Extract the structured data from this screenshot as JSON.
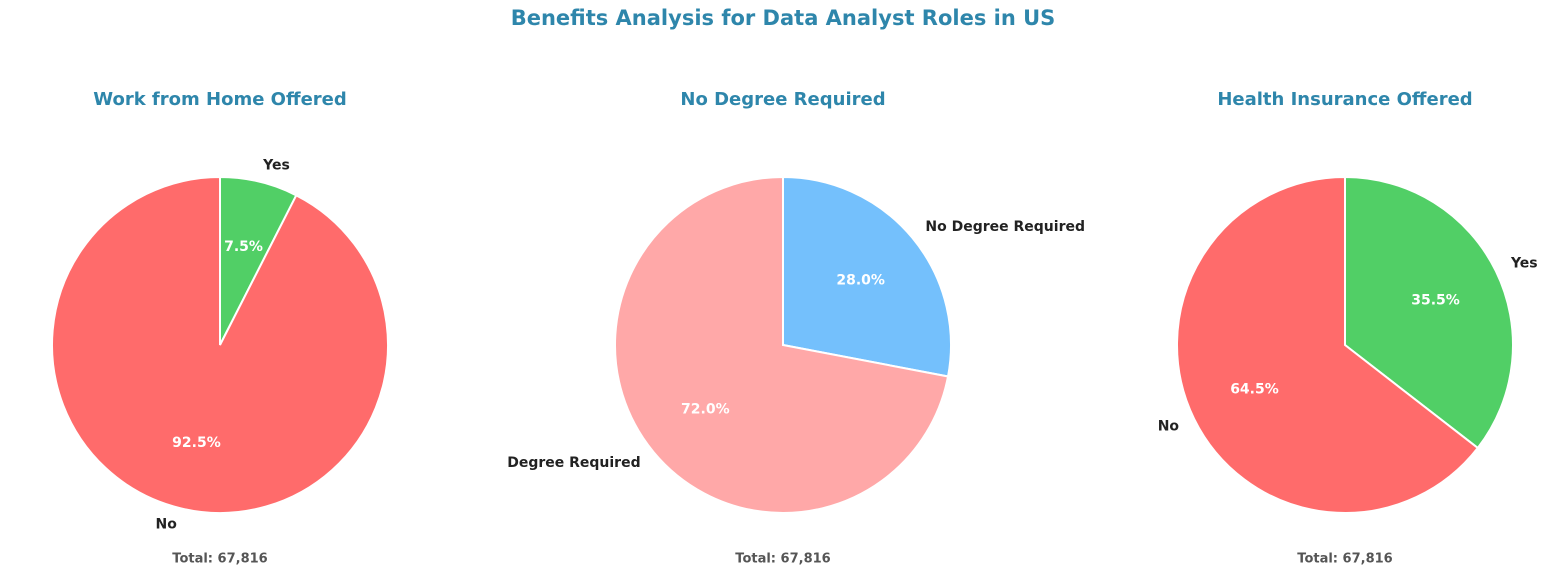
{
  "title": "Benefits Analysis for Data Analyst Roles in US",
  "chart_data": [
    {
      "type": "pie",
      "title": "Work from Home Offered",
      "categories": [
        "Yes",
        "No"
      ],
      "values": [
        7.5,
        92.5
      ],
      "value_labels": [
        "7.5%",
        "92.5%"
      ],
      "colors": [
        "#51cf66",
        "#ff6b6b"
      ],
      "total_label": "Total: 67,816"
    },
    {
      "type": "pie",
      "title": "No Degree Required",
      "categories": [
        "No Degree Required",
        "Degree Required"
      ],
      "values": [
        28.0,
        72.0
      ],
      "value_labels": [
        "28.0%",
        "72.0%"
      ],
      "colors": [
        "#74c0fc",
        "#ffa8a8"
      ],
      "total_label": "Total: 67,816"
    },
    {
      "type": "pie",
      "title": "Health Insurance Offered",
      "categories": [
        "Yes",
        "No"
      ],
      "values": [
        35.5,
        64.5
      ],
      "value_labels": [
        "35.5%",
        "64.5%"
      ],
      "colors": [
        "#51cf66",
        "#ff6b6b"
      ],
      "total_label": "Total: 67,816"
    }
  ]
}
